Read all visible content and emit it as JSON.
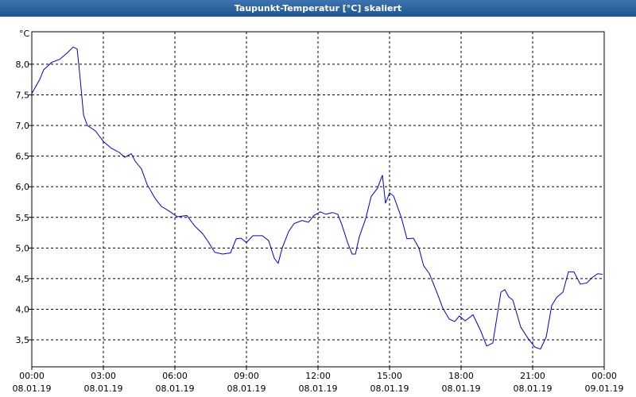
{
  "chart_data": {
    "type": "line",
    "title": "Taupunkt-Temperatur [°C] skaliert",
    "y_unit": "°C",
    "x": [
      0,
      0.33,
      0.5,
      0.83,
      1.17,
      1.5,
      1.73,
      1.9,
      2.0,
      2.17,
      2.33,
      2.67,
      3.0,
      3.33,
      3.67,
      3.9,
      4.17,
      4.33,
      4.6,
      4.83,
      5.17,
      5.43,
      5.77,
      6.1,
      6.5,
      6.83,
      7.17,
      7.4,
      7.67,
      8.0,
      8.33,
      8.57,
      8.77,
      9.0,
      9.27,
      9.67,
      9.93,
      10.17,
      10.33,
      10.5,
      10.77,
      11.0,
      11.33,
      11.6,
      11.83,
      12.1,
      12.33,
      12.6,
      12.83,
      13.0,
      13.23,
      13.43,
      13.57,
      13.73,
      14.0,
      14.23,
      14.5,
      14.7,
      14.83,
      15.0,
      15.17,
      15.5,
      15.73,
      16.0,
      16.23,
      16.43,
      16.67,
      17.0,
      17.23,
      17.5,
      17.73,
      17.93,
      18.17,
      18.5,
      18.83,
      19.07,
      19.33,
      19.67,
      19.83,
      20.0,
      20.17,
      20.5,
      20.83,
      21.1,
      21.33,
      21.57,
      21.8,
      22.0,
      22.27,
      22.5,
      22.73,
      23.0,
      23.27,
      23.5,
      23.73,
      23.93
    ],
    "series": [
      {
        "name": "Taupunkt",
        "color": "#0000cc",
        "values": [
          7.52,
          7.75,
          7.91,
          8.03,
          8.08,
          8.19,
          8.28,
          8.25,
          7.88,
          7.17,
          7.0,
          6.91,
          6.74,
          6.63,
          6.56,
          6.48,
          6.54,
          6.42,
          6.29,
          6.04,
          5.81,
          5.68,
          5.6,
          5.51,
          5.53,
          5.36,
          5.23,
          5.1,
          4.93,
          4.9,
          4.92,
          5.15,
          5.16,
          5.09,
          5.2,
          5.2,
          5.12,
          4.83,
          4.75,
          5.0,
          5.27,
          5.4,
          5.45,
          5.42,
          5.53,
          5.59,
          5.55,
          5.58,
          5.55,
          5.38,
          5.1,
          4.9,
          4.9,
          5.18,
          5.48,
          5.84,
          5.98,
          6.19,
          5.73,
          5.9,
          5.85,
          5.49,
          5.15,
          5.16,
          5.0,
          4.71,
          4.58,
          4.26,
          4.02,
          3.84,
          3.8,
          3.89,
          3.81,
          3.91,
          3.64,
          3.4,
          3.45,
          4.28,
          4.32,
          4.2,
          4.15,
          3.71,
          3.51,
          3.38,
          3.35,
          3.55,
          4.06,
          4.19,
          4.28,
          4.61,
          4.61,
          4.41,
          4.43,
          4.52,
          4.58,
          4.57
        ]
      }
    ],
    "xlim": [
      0,
      24
    ],
    "xticks": [
      {
        "value": 0,
        "label": "00:00 08.01.19"
      },
      {
        "value": 3,
        "label": "03:00 08.01.19"
      },
      {
        "value": 6,
        "label": "06:00 08.01.19"
      },
      {
        "value": 9,
        "label": "09:00 08.01.19"
      },
      {
        "value": 12,
        "label": "12:00 08.01.19"
      },
      {
        "value": 15,
        "label": "15:00 08.01.19"
      },
      {
        "value": 18,
        "label": "18:00 08.01.19"
      },
      {
        "value": 21,
        "label": "21:00 08.01.19"
      },
      {
        "value": 24,
        "label": "00:00 09.01.19"
      }
    ],
    "ylim": [
      3.06,
      8.53
    ],
    "yticks": [
      {
        "value": 3.5,
        "label": "3,5"
      },
      {
        "value": 4.0,
        "label": "4,0"
      },
      {
        "value": 4.5,
        "label": "4,5"
      },
      {
        "value": 5.0,
        "label": "5,0"
      },
      {
        "value": 5.5,
        "label": "5,5"
      },
      {
        "value": 6.0,
        "label": "6,0"
      },
      {
        "value": 6.5,
        "label": "6,5"
      },
      {
        "value": 7.0,
        "label": "7,0"
      },
      {
        "value": 7.5,
        "label": "7,5"
      },
      {
        "value": 8.0,
        "label": "8,0"
      }
    ],
    "grid": true
  }
}
